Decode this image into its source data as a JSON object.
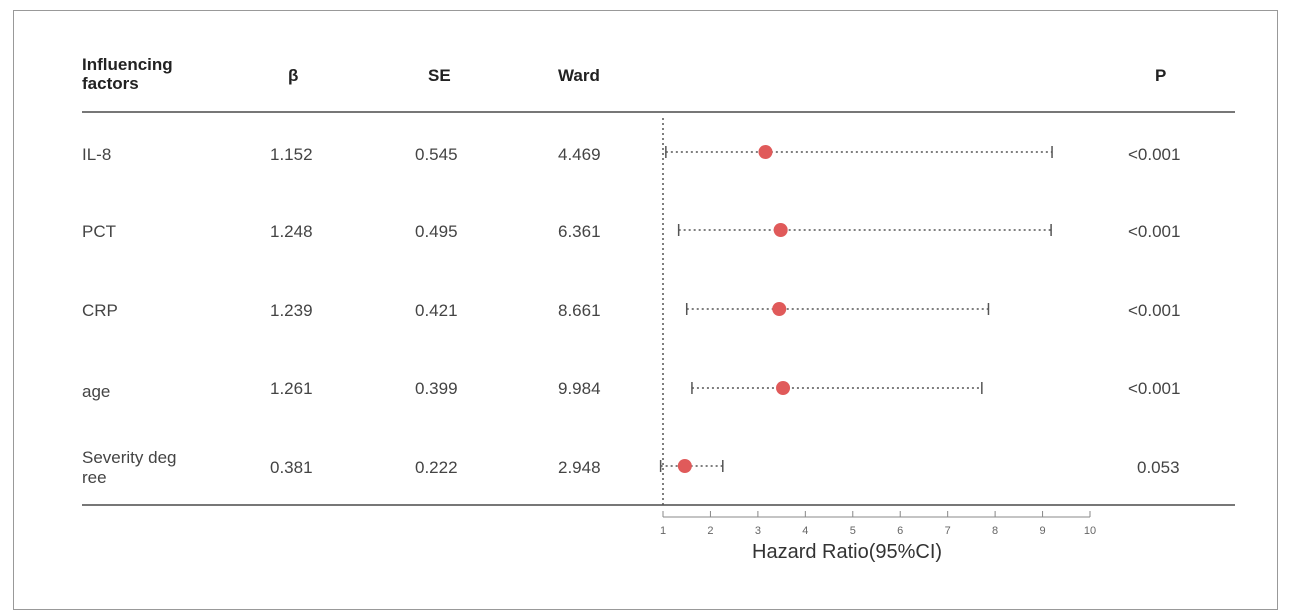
{
  "headers": {
    "factor_line1": "Influencing",
    "factor_line2": "factors",
    "beta": "β",
    "se": "SE",
    "ward": "Ward",
    "p": "P"
  },
  "rows": [
    {
      "factor": "IL-8",
      "beta": "1.152",
      "se": "0.545",
      "ward": "4.469",
      "p": "<0.001"
    },
    {
      "factor": "PCT",
      "beta": "1.248",
      "se": "0.495",
      "ward": "6.361",
      "p": "<0.001"
    },
    {
      "factor": "CRP",
      "beta": "1.239",
      "se": "0.421",
      "ward": "8.661",
      "p": "<0.001"
    },
    {
      "factor": "age",
      "beta": "1.261",
      "se": "0.399",
      "ward": "9.984",
      "p": "<0.001"
    },
    {
      "factor_line1": "Severity deg",
      "factor_line2": "ree",
      "beta": "0.381",
      "se": "0.222",
      "ward": "2.948",
      "p": "0.053"
    }
  ],
  "chart_data": {
    "type": "forest",
    "xlabel": "Hazard Ratio(95%CI)",
    "xlim": [
      1,
      10
    ],
    "xticks": [
      1,
      2,
      3,
      4,
      5,
      6,
      7,
      8,
      9,
      10
    ],
    "reference_line": 1,
    "point_color": "#e05a5a",
    "series": [
      {
        "label": "IL-8",
        "hr": 3.16,
        "lower": 1.06,
        "upper": 9.2
      },
      {
        "label": "PCT",
        "hr": 3.48,
        "lower": 1.33,
        "upper": 9.18
      },
      {
        "label": "CRP",
        "hr": 3.45,
        "lower": 1.5,
        "upper": 7.86
      },
      {
        "label": "age",
        "hr": 3.53,
        "lower": 1.61,
        "upper": 7.72
      },
      {
        "label": "Severity degree",
        "hr": 1.46,
        "lower": 0.95,
        "upper": 2.26
      }
    ]
  }
}
